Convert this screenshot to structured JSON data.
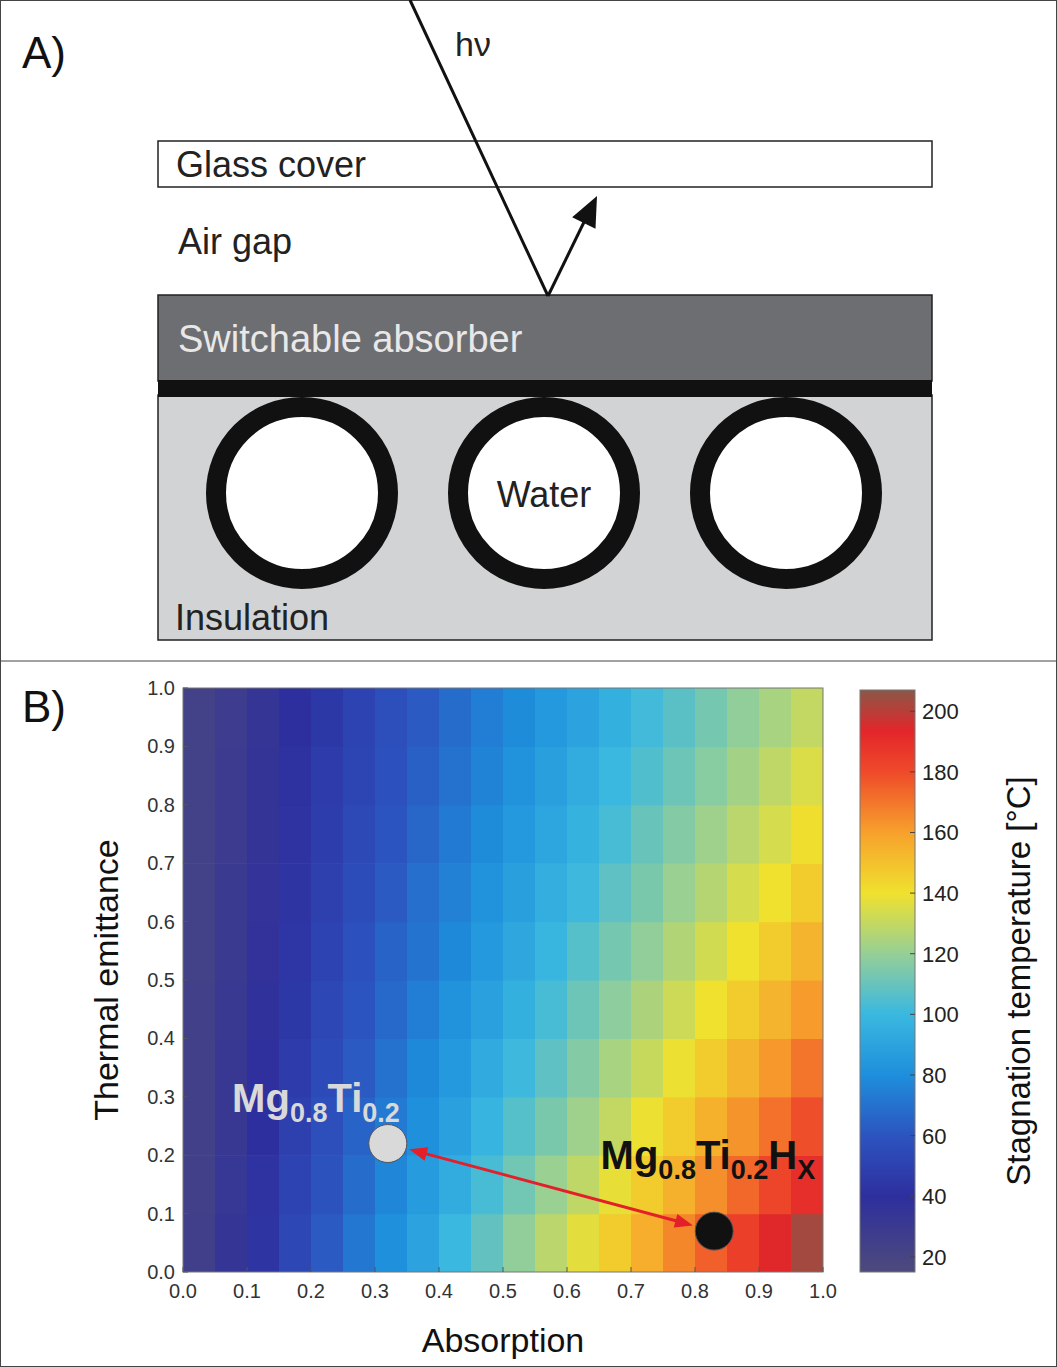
{
  "diagram": {
    "panel": "A)",
    "photon": "hν",
    "glass": "Glass cover",
    "air": "Air gap",
    "absorber": "Switchable absorber",
    "water": "Water",
    "insulation": "Insulation"
  },
  "chart_data": {
    "type": "heatmap",
    "panel": "B)",
    "xlabel": "Absorption",
    "ylabel": "Thermal emittance",
    "xlim": [
      0,
      1
    ],
    "ylim": [
      0,
      1
    ],
    "xticks": [
      {
        "value": 0,
        "label": "0.0"
      },
      0.1,
      0.2,
      0.3,
      0.4,
      0.5,
      0.6,
      0.7,
      0.8,
      0.9,
      {
        "value": 1,
        "label": "1.0"
      }
    ],
    "yticks": [
      {
        "value": 0,
        "label": "0.0"
      },
      0.1,
      0.2,
      0.3,
      0.4,
      0.5,
      0.6,
      0.7,
      0.8,
      0.9,
      {
        "value": 1,
        "label": "1.0"
      }
    ],
    "x_edges": [
      0,
      0.05,
      0.1,
      0.15,
      0.2,
      0.25,
      0.3,
      0.35,
      0.4,
      0.45,
      0.5,
      0.55,
      0.6,
      0.65,
      0.7,
      0.75,
      0.8,
      0.85,
      0.9,
      0.95,
      1
    ],
    "y_edges": [
      0,
      0.1,
      0.2,
      0.3,
      0.4,
      0.5,
      0.6,
      0.7,
      0.8,
      0.9,
      1
    ],
    "z": [
      [
        25,
        34,
        43,
        53,
        62,
        72,
        81,
        90,
        100,
        109,
        119,
        128,
        137,
        147,
        156,
        166,
        175,
        184,
        194,
        203
      ],
      [
        24,
        33,
        42,
        51,
        59,
        68,
        77,
        86,
        94,
        103,
        112,
        121,
        129,
        138,
        147,
        155,
        164,
        173,
        182,
        190
      ],
      [
        24,
        32,
        40,
        49,
        57,
        65,
        73,
        81,
        89,
        98,
        106,
        114,
        122,
        130,
        139,
        147,
        155,
        163,
        171,
        179
      ],
      [
        24,
        32,
        39,
        47,
        55,
        62,
        70,
        78,
        85,
        93,
        101,
        108,
        116,
        124,
        131,
        139,
        147,
        154,
        162,
        170
      ],
      [
        24,
        31,
        38,
        45,
        53,
        60,
        67,
        74,
        82,
        89,
        96,
        103,
        111,
        118,
        125,
        132,
        140,
        147,
        154,
        161
      ],
      [
        23,
        30,
        37,
        44,
        51,
        58,
        65,
        71,
        78,
        85,
        92,
        99,
        106,
        113,
        119,
        126,
        133,
        140,
        147,
        154
      ],
      [
        23,
        30,
        36,
        43,
        49,
        56,
        62,
        69,
        75,
        82,
        88,
        95,
        101,
        108,
        114,
        121,
        127,
        134,
        140,
        147
      ],
      [
        23,
        29,
        35,
        42,
        48,
        54,
        60,
        66,
        73,
        79,
        85,
        91,
        97,
        103,
        110,
        116,
        122,
        128,
        134,
        141
      ],
      [
        23,
        29,
        35,
        41,
        47,
        52,
        58,
        64,
        70,
        76,
        82,
        88,
        94,
        100,
        105,
        111,
        117,
        123,
        129,
        135
      ],
      [
        23,
        28,
        34,
        40,
        45,
        51,
        57,
        62,
        68,
        74,
        79,
        85,
        90,
        96,
        102,
        107,
        113,
        119,
        124,
        130
      ]
    ],
    "colorbar": {
      "label": "Stagnation temperature [°C]",
      "range": [
        15,
        207
      ],
      "ticks": [
        20,
        40,
        60,
        80,
        100,
        120,
        140,
        160,
        180,
        200
      ]
    },
    "points": [
      {
        "x": 0.32,
        "y": 0.22,
        "color": "#d9d9d9",
        "label": [
          {
            "text": "Mg"
          },
          {
            "text": "0.8",
            "sub": true
          },
          {
            "text": "Ti"
          },
          {
            "text": "0.2",
            "sub": true
          }
        ]
      },
      {
        "x": 0.83,
        "y": 0.07,
        "color": "#111111",
        "label": [
          {
            "text": "Mg"
          },
          {
            "text": "0.8",
            "sub": true
          },
          {
            "text": "Ti"
          },
          {
            "text": "0.2",
            "sub": true
          },
          {
            "text": "H"
          },
          {
            "text": "X",
            "sub": true
          }
        ]
      }
    ]
  }
}
